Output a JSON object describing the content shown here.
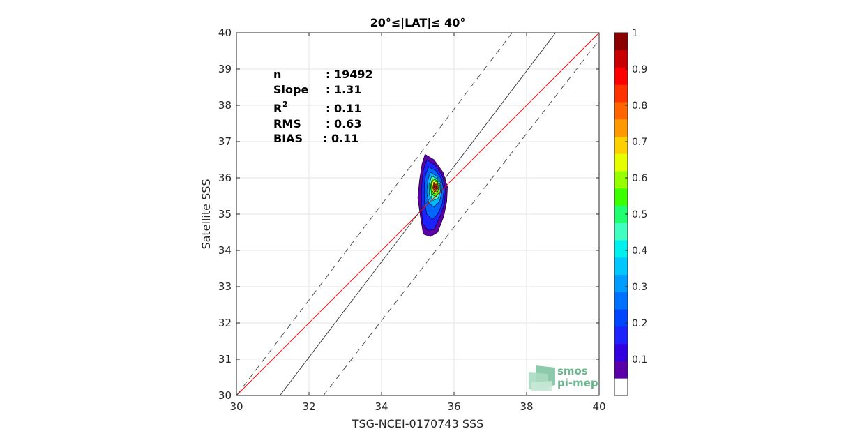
{
  "chart_data": {
    "type": "scatter",
    "title": "20°≤|LAT|≤ 40°",
    "xlabel": "TSG-NCEI-0170743 SSS",
    "ylabel": "Satellite SSS",
    "xlim": [
      30,
      40
    ],
    "ylim": [
      30,
      40
    ],
    "xticks": [
      "30",
      "32",
      "34",
      "36",
      "38",
      "40"
    ],
    "yticks": [
      "30",
      "31",
      "32",
      "33",
      "34",
      "35",
      "36",
      "37",
      "38",
      "39",
      "40"
    ],
    "grid": true,
    "stats": [
      {
        "label": "n",
        "value": ": 19492"
      },
      {
        "label": "Slope",
        "value": ": 1.31"
      },
      {
        "label": "R",
        "sup": "2",
        "value": ": 0.11"
      },
      {
        "label": "RMS",
        "value": ": 0.63"
      },
      {
        "label": "BIAS",
        "value": ": 0.11"
      }
    ],
    "lines": [
      {
        "name": "identity",
        "color": "#ff0000",
        "dash": "solid",
        "points": [
          [
            30,
            30
          ],
          [
            40,
            40
          ]
        ]
      },
      {
        "name": "regression",
        "color": "#333333",
        "dash": "solid",
        "points": [
          [
            31.2,
            30
          ],
          [
            38.8,
            40
          ]
        ]
      },
      {
        "name": "upper-bound",
        "color": "#444444",
        "dash": "dashed",
        "points": [
          [
            30,
            30
          ],
          [
            37.6,
            40
          ]
        ]
      },
      {
        "name": "lower-bound",
        "color": "#444444",
        "dash": "dashed",
        "points": [
          [
            32.4,
            30
          ],
          [
            40,
            39.8
          ]
        ]
      }
    ],
    "density_contours": [
      {
        "level": 0.05,
        "color": "#5b00a8",
        "points": [
          [
            35.2,
            36.65
          ],
          [
            35.45,
            36.5
          ],
          [
            35.7,
            36.15
          ],
          [
            35.82,
            35.75
          ],
          [
            35.8,
            35.35
          ],
          [
            35.72,
            34.95
          ],
          [
            35.55,
            34.5
          ],
          [
            35.35,
            34.38
          ],
          [
            35.15,
            34.45
          ],
          [
            35.07,
            34.95
          ],
          [
            35.0,
            35.45
          ],
          [
            35.05,
            35.95
          ],
          [
            35.12,
            36.4
          ]
        ]
      },
      {
        "level": 0.15,
        "color": "#1d23ff",
        "points": [
          [
            35.25,
            36.5
          ],
          [
            35.48,
            36.35
          ],
          [
            35.68,
            36.05
          ],
          [
            35.76,
            35.7
          ],
          [
            35.74,
            35.3
          ],
          [
            35.62,
            34.95
          ],
          [
            35.45,
            34.58
          ],
          [
            35.28,
            34.55
          ],
          [
            35.13,
            34.75
          ],
          [
            35.1,
            35.2
          ],
          [
            35.1,
            35.7
          ],
          [
            35.15,
            36.2
          ]
        ]
      },
      {
        "level": 0.25,
        "color": "#0066ff",
        "points": [
          [
            35.3,
            36.3
          ],
          [
            35.5,
            36.2
          ],
          [
            35.66,
            35.95
          ],
          [
            35.72,
            35.65
          ],
          [
            35.68,
            35.3
          ],
          [
            35.55,
            35.0
          ],
          [
            35.4,
            34.85
          ],
          [
            35.25,
            35.0
          ],
          [
            35.18,
            35.35
          ],
          [
            35.18,
            35.8
          ],
          [
            35.22,
            36.1
          ]
        ]
      },
      {
        "level": 0.35,
        "color": "#00b8ff",
        "points": [
          [
            35.35,
            36.15
          ],
          [
            35.52,
            36.05
          ],
          [
            35.64,
            35.85
          ],
          [
            35.66,
            35.6
          ],
          [
            35.6,
            35.35
          ],
          [
            35.45,
            35.2
          ],
          [
            35.3,
            35.3
          ],
          [
            35.25,
            35.6
          ],
          [
            35.28,
            35.95
          ]
        ]
      },
      {
        "level": 0.45,
        "color": "#40ffc0",
        "points": [
          [
            35.38,
            36.05
          ],
          [
            35.53,
            35.98
          ],
          [
            35.62,
            35.8
          ],
          [
            35.62,
            35.6
          ],
          [
            35.55,
            35.42
          ],
          [
            35.42,
            35.38
          ],
          [
            35.32,
            35.52
          ],
          [
            35.31,
            35.8
          ]
        ]
      },
      {
        "level": 0.55,
        "color": "#3cff00",
        "points": [
          [
            35.4,
            35.98
          ],
          [
            35.53,
            35.93
          ],
          [
            35.6,
            35.78
          ],
          [
            35.59,
            35.6
          ],
          [
            35.5,
            35.48
          ],
          [
            35.38,
            35.55
          ],
          [
            35.35,
            35.78
          ]
        ]
      },
      {
        "level": 0.65,
        "color": "#ffff00",
        "points": [
          [
            35.42,
            35.93
          ],
          [
            35.53,
            35.88
          ],
          [
            35.58,
            35.75
          ],
          [
            35.55,
            35.62
          ],
          [
            35.46,
            35.56
          ],
          [
            35.39,
            35.66
          ],
          [
            35.38,
            35.82
          ]
        ]
      },
      {
        "level": 0.75,
        "color": "#ff9900",
        "points": [
          [
            35.44,
            35.88
          ],
          [
            35.53,
            35.84
          ],
          [
            35.56,
            35.73
          ],
          [
            35.52,
            35.63
          ],
          [
            35.45,
            35.62
          ],
          [
            35.41,
            35.72
          ]
        ]
      },
      {
        "level": 0.85,
        "color": "#ff3300",
        "points": [
          [
            35.45,
            35.84
          ],
          [
            35.52,
            35.81
          ],
          [
            35.54,
            35.72
          ],
          [
            35.5,
            35.65
          ],
          [
            35.45,
            35.66
          ],
          [
            35.43,
            35.74
          ]
        ]
      },
      {
        "level": 0.95,
        "color": "#c80000",
        "points": [
          [
            35.46,
            35.8
          ],
          [
            35.51,
            35.78
          ],
          [
            35.52,
            35.72
          ],
          [
            35.48,
            35.69
          ],
          [
            35.45,
            35.73
          ]
        ]
      }
    ],
    "colorbar": {
      "ticks": [
        "0.1",
        "0.2",
        "0.3",
        "0.4",
        "0.5",
        "0.6",
        "0.7",
        "0.8",
        "0.9",
        "1"
      ],
      "range": [
        0,
        1
      ],
      "colors": [
        "#ffffff",
        "#5b00a8",
        "#3300e0",
        "#1d23ff",
        "#0046ff",
        "#0072ff",
        "#009cff",
        "#00c8ff",
        "#00f0f0",
        "#40ffc0",
        "#20ff70",
        "#3cff00",
        "#96ff00",
        "#e6ff00",
        "#ffd000",
        "#ff9900",
        "#ff6600",
        "#ff3300",
        "#ff0000",
        "#c80000",
        "#8b0000"
      ]
    }
  },
  "logo": {
    "line1": "smos",
    "line2": "pi-mep"
  }
}
